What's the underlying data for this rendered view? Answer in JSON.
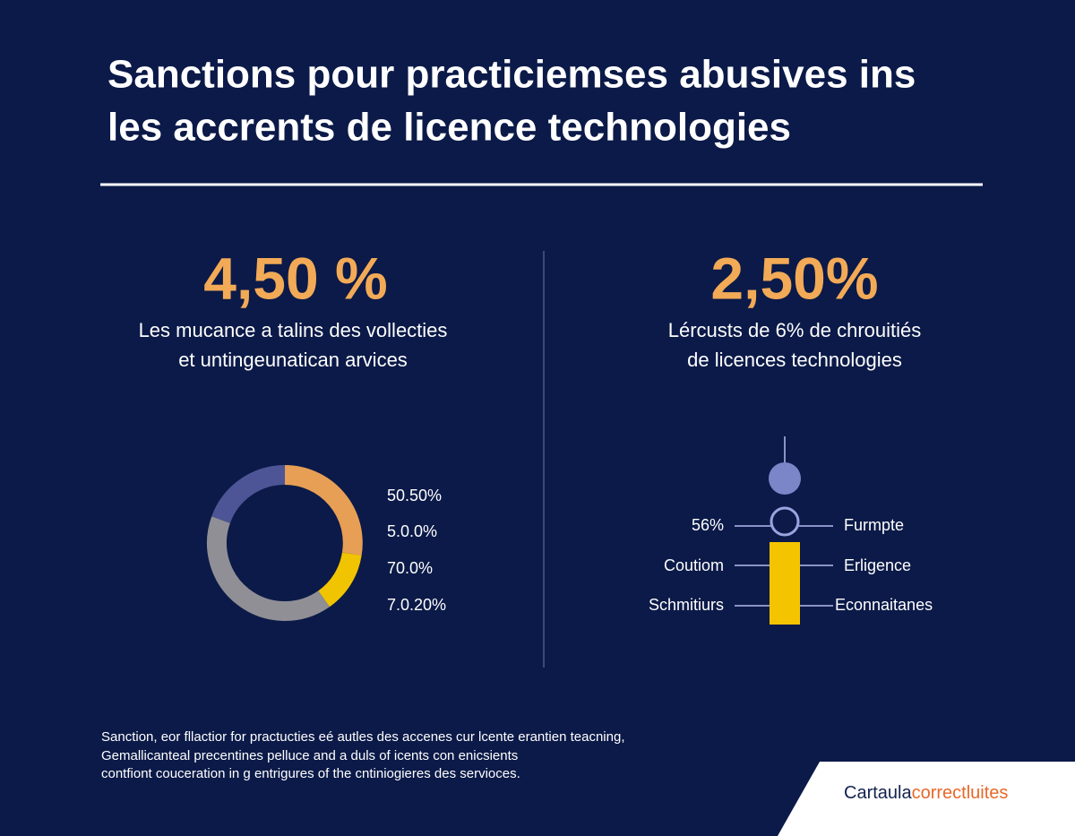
{
  "header": {
    "title_lines": [
      "Sanctions pour practiciemses abusives ins",
      "les accrents de licence technologies"
    ]
  },
  "left_panel": {
    "stat": "4,50 %",
    "description_lines": [
      "Les mucance a talins des vollecties",
      "et untingeunatican arvices"
    ],
    "donut_labels": [
      "50.50%",
      "5.0.0%",
      "70.0%",
      "7.0.20%"
    ]
  },
  "right_panel": {
    "stat": "2,50%",
    "description_lines": [
      "Lércusts de 6% de chrouitiés",
      "de licences technologies"
    ],
    "left_labels": [
      "56%",
      "Coutiom",
      "Schmitiurs"
    ],
    "right_labels": [
      "Furmpte",
      "Erligence",
      "Econnaitanes"
    ]
  },
  "footer": {
    "lines": [
      "Sanction, eor fllactior for practucties eé autles des accenes cur lcente erantien teacning,",
      "Gemallicanteal precentines pelluce and a duls of icents con enicsients",
      "contfiont couceration in g entrigures of the cntiniogieres des servioces."
    ]
  },
  "brand": {
    "name": "Cartaula",
    "tagline": "correctluites"
  }
}
